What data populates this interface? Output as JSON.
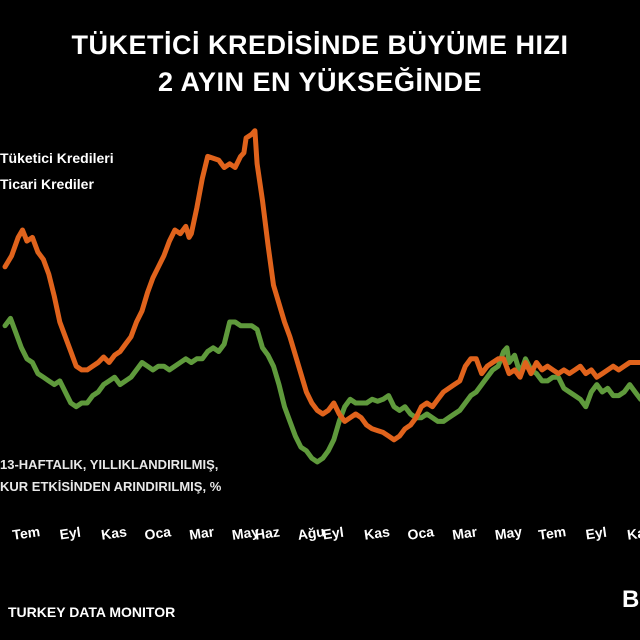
{
  "title_line1": "TÜKETİCİ KREDİSİNDE BÜYÜME HIZI",
  "title_line2": "2 AYIN EN YÜKSEĞİNDE",
  "legend": {
    "consumer": "Tüketici Kredileri",
    "commercial": "Ticari Krediler"
  },
  "note_line1": "13-HAFTALIK, YILLIKLANDIRILMIŞ,",
  "note_line2": "KUR ETKİSİNDEN ARINDIRILMIŞ, %",
  "source": "TURKEY DATA MONITOR",
  "logo_text": "B",
  "colors": {
    "background": "#000000",
    "consumer": "#e0631c",
    "commercial": "#5f9a3c",
    "text": "#ffffff"
  },
  "chart_data": {
    "type": "line",
    "title": "TÜKETİCİ KREDİSİNDE BÜYÜME HIZI 2 AYIN EN YÜKSEĞİNDE",
    "xlabel": "",
    "ylabel": "",
    "grid": false,
    "legend_position": "top-left",
    "ylim": [
      0,
      100
    ],
    "x_ticks": [
      {
        "label": "Tem",
        "x": 1
      },
      {
        "label": "Eyl",
        "x": 3
      },
      {
        "label": "Kas",
        "x": 5
      },
      {
        "label": "Oca",
        "x": 7
      },
      {
        "label": "Mar",
        "x": 9
      },
      {
        "label": "May",
        "x": 11
      },
      {
        "label": "Haz",
        "x": 12
      },
      {
        "label": "Ağu",
        "x": 14
      },
      {
        "label": "Eyl",
        "x": 15
      },
      {
        "label": "Kas",
        "x": 17
      },
      {
        "label": "Oca",
        "x": 19
      },
      {
        "label": "Mar",
        "x": 21
      },
      {
        "label": "May",
        "x": 23
      },
      {
        "label": "Tem",
        "x": 25
      },
      {
        "label": "Eyl",
        "x": 27
      },
      {
        "label": "Kas",
        "x": 29
      }
    ],
    "series": [
      {
        "name": "Tüketici Kredileri",
        "color": "#e0631c",
        "points": [
          [
            0.0,
            62
          ],
          [
            0.3,
            65
          ],
          [
            0.6,
            70
          ],
          [
            0.8,
            72
          ],
          [
            1.0,
            69
          ],
          [
            1.25,
            70
          ],
          [
            1.5,
            66
          ],
          [
            1.75,
            64
          ],
          [
            2.0,
            60
          ],
          [
            2.25,
            54
          ],
          [
            2.5,
            47
          ],
          [
            2.75,
            43
          ],
          [
            3.0,
            39
          ],
          [
            3.25,
            35
          ],
          [
            3.5,
            34
          ],
          [
            3.75,
            34
          ],
          [
            4.0,
            35
          ],
          [
            4.25,
            36
          ],
          [
            4.5,
            37.5
          ],
          [
            4.75,
            36
          ],
          [
            5.0,
            38
          ],
          [
            5.25,
            39
          ],
          [
            5.5,
            41
          ],
          [
            5.75,
            43
          ],
          [
            6.0,
            47
          ],
          [
            6.25,
            50
          ],
          [
            6.5,
            55
          ],
          [
            6.75,
            59
          ],
          [
            7.0,
            62
          ],
          [
            7.25,
            65
          ],
          [
            7.5,
            69
          ],
          [
            7.75,
            72
          ],
          [
            8.0,
            71
          ],
          [
            8.25,
            73
          ],
          [
            8.4,
            70
          ],
          [
            8.5,
            71
          ],
          [
            8.75,
            78
          ],
          [
            9.0,
            86
          ],
          [
            9.25,
            92
          ],
          [
            9.5,
            91.5
          ],
          [
            9.75,
            91
          ],
          [
            10.0,
            89
          ],
          [
            10.25,
            90
          ],
          [
            10.5,
            89
          ],
          [
            10.75,
            92
          ],
          [
            10.9,
            93
          ],
          [
            11.0,
            97
          ],
          [
            11.25,
            98
          ],
          [
            11.4,
            99
          ],
          [
            11.5,
            90
          ],
          [
            11.75,
            80
          ],
          [
            12.0,
            68
          ],
          [
            12.25,
            57
          ],
          [
            12.5,
            52
          ],
          [
            12.75,
            47
          ],
          [
            13.0,
            43
          ],
          [
            13.25,
            38
          ],
          [
            13.5,
            33
          ],
          [
            13.75,
            28
          ],
          [
            14.0,
            25
          ],
          [
            14.25,
            23
          ],
          [
            14.5,
            22
          ],
          [
            14.75,
            23
          ],
          [
            15.0,
            25
          ],
          [
            15.25,
            22
          ],
          [
            15.5,
            20
          ],
          [
            15.75,
            21
          ],
          [
            16.0,
            22
          ],
          [
            16.25,
            21
          ],
          [
            16.5,
            19
          ],
          [
            16.75,
            18
          ],
          [
            17.0,
            17.5
          ],
          [
            17.25,
            17
          ],
          [
            17.5,
            16
          ],
          [
            17.75,
            15
          ],
          [
            18.0,
            16
          ],
          [
            18.25,
            18
          ],
          [
            18.5,
            19
          ],
          [
            18.75,
            21
          ],
          [
            19.0,
            24
          ],
          [
            19.25,
            25
          ],
          [
            19.5,
            24
          ],
          [
            19.75,
            26
          ],
          [
            20.0,
            28
          ],
          [
            20.25,
            29
          ],
          [
            20.5,
            30
          ],
          [
            20.75,
            31
          ],
          [
            21.0,
            35
          ],
          [
            21.25,
            37
          ],
          [
            21.5,
            37
          ],
          [
            21.75,
            33
          ],
          [
            22.0,
            35
          ],
          [
            22.25,
            36
          ],
          [
            22.5,
            37
          ],
          [
            22.75,
            37
          ],
          [
            23.0,
            33
          ],
          [
            23.25,
            34
          ],
          [
            23.5,
            32
          ],
          [
            23.75,
            36
          ],
          [
            24.0,
            33
          ],
          [
            24.25,
            36
          ],
          [
            24.5,
            34
          ],
          [
            24.75,
            35
          ],
          [
            25.0,
            34
          ],
          [
            25.25,
            33
          ],
          [
            25.5,
            34
          ],
          [
            25.75,
            33
          ],
          [
            26.0,
            34
          ],
          [
            26.25,
            35
          ],
          [
            26.5,
            33
          ],
          [
            26.75,
            34
          ],
          [
            27.0,
            32
          ],
          [
            27.25,
            33
          ],
          [
            27.5,
            34
          ],
          [
            27.75,
            35
          ],
          [
            28.0,
            34
          ],
          [
            28.25,
            35
          ],
          [
            28.5,
            36
          ],
          [
            28.75,
            36
          ],
          [
            29.0,
            36
          ],
          [
            29.2,
            36
          ]
        ]
      },
      {
        "name": "Ticari Krediler",
        "color": "#5f9a3c",
        "points": [
          [
            0.0,
            46
          ],
          [
            0.25,
            48
          ],
          [
            0.5,
            44
          ],
          [
            0.75,
            40
          ],
          [
            1.0,
            37
          ],
          [
            1.25,
            36
          ],
          [
            1.5,
            33
          ],
          [
            1.75,
            32
          ],
          [
            2.0,
            31
          ],
          [
            2.25,
            30
          ],
          [
            2.5,
            31
          ],
          [
            2.75,
            28
          ],
          [
            3.0,
            25
          ],
          [
            3.25,
            24
          ],
          [
            3.5,
            25
          ],
          [
            3.75,
            25
          ],
          [
            4.0,
            27
          ],
          [
            4.25,
            28
          ],
          [
            4.5,
            30
          ],
          [
            4.75,
            31
          ],
          [
            5.0,
            32
          ],
          [
            5.25,
            30
          ],
          [
            5.5,
            31
          ],
          [
            5.75,
            32
          ],
          [
            6.0,
            34
          ],
          [
            6.25,
            36
          ],
          [
            6.5,
            35
          ],
          [
            6.75,
            34
          ],
          [
            7.0,
            35
          ],
          [
            7.25,
            35
          ],
          [
            7.5,
            34
          ],
          [
            7.75,
            35
          ],
          [
            8.0,
            36
          ],
          [
            8.25,
            37
          ],
          [
            8.5,
            36
          ],
          [
            8.75,
            37
          ],
          [
            9.0,
            37
          ],
          [
            9.25,
            39
          ],
          [
            9.5,
            40
          ],
          [
            9.75,
            39
          ],
          [
            10.0,
            41
          ],
          [
            10.25,
            47
          ],
          [
            10.5,
            47
          ],
          [
            10.75,
            46
          ],
          [
            11.0,
            46
          ],
          [
            11.25,
            46
          ],
          [
            11.5,
            45
          ],
          [
            11.75,
            40
          ],
          [
            12.0,
            38
          ],
          [
            12.25,
            35
          ],
          [
            12.5,
            30
          ],
          [
            12.75,
            24
          ],
          [
            13.0,
            20
          ],
          [
            13.25,
            16
          ],
          [
            13.5,
            13
          ],
          [
            13.75,
            12
          ],
          [
            14.0,
            10
          ],
          [
            14.25,
            9
          ],
          [
            14.5,
            10
          ],
          [
            14.75,
            12
          ],
          [
            15.0,
            15
          ],
          [
            15.25,
            20
          ],
          [
            15.5,
            24
          ],
          [
            15.75,
            26
          ],
          [
            16.0,
            25
          ],
          [
            16.25,
            25
          ],
          [
            16.5,
            25
          ],
          [
            16.75,
            26
          ],
          [
            17.0,
            25.5
          ],
          [
            17.25,
            26
          ],
          [
            17.5,
            27
          ],
          [
            17.75,
            24
          ],
          [
            18.0,
            23
          ],
          [
            18.25,
            24
          ],
          [
            18.5,
            22
          ],
          [
            18.75,
            21
          ],
          [
            19.0,
            21
          ],
          [
            19.25,
            22
          ],
          [
            19.5,
            21
          ],
          [
            19.75,
            20
          ],
          [
            20.0,
            20
          ],
          [
            20.25,
            21
          ],
          [
            20.5,
            22
          ],
          [
            20.75,
            23
          ],
          [
            21.0,
            25
          ],
          [
            21.25,
            27
          ],
          [
            21.5,
            28
          ],
          [
            21.75,
            30
          ],
          [
            22.0,
            32
          ],
          [
            22.25,
            34
          ],
          [
            22.5,
            35
          ],
          [
            22.75,
            39
          ],
          [
            22.9,
            40
          ],
          [
            23.0,
            36
          ],
          [
            23.25,
            38
          ],
          [
            23.5,
            33
          ],
          [
            23.75,
            37
          ],
          [
            24.0,
            34
          ],
          [
            24.25,
            33
          ],
          [
            24.5,
            31
          ],
          [
            24.75,
            31
          ],
          [
            25.0,
            32
          ],
          [
            25.25,
            32
          ],
          [
            25.5,
            29
          ],
          [
            25.75,
            28
          ],
          [
            26.0,
            27
          ],
          [
            26.25,
            26
          ],
          [
            26.5,
            24
          ],
          [
            26.75,
            28
          ],
          [
            27.0,
            30
          ],
          [
            27.25,
            28
          ],
          [
            27.5,
            29
          ],
          [
            27.75,
            27
          ],
          [
            28.0,
            27
          ],
          [
            28.25,
            28
          ],
          [
            28.5,
            30
          ],
          [
            28.75,
            28
          ],
          [
            29.0,
            26
          ],
          [
            29.2,
            27
          ]
        ]
      }
    ]
  }
}
